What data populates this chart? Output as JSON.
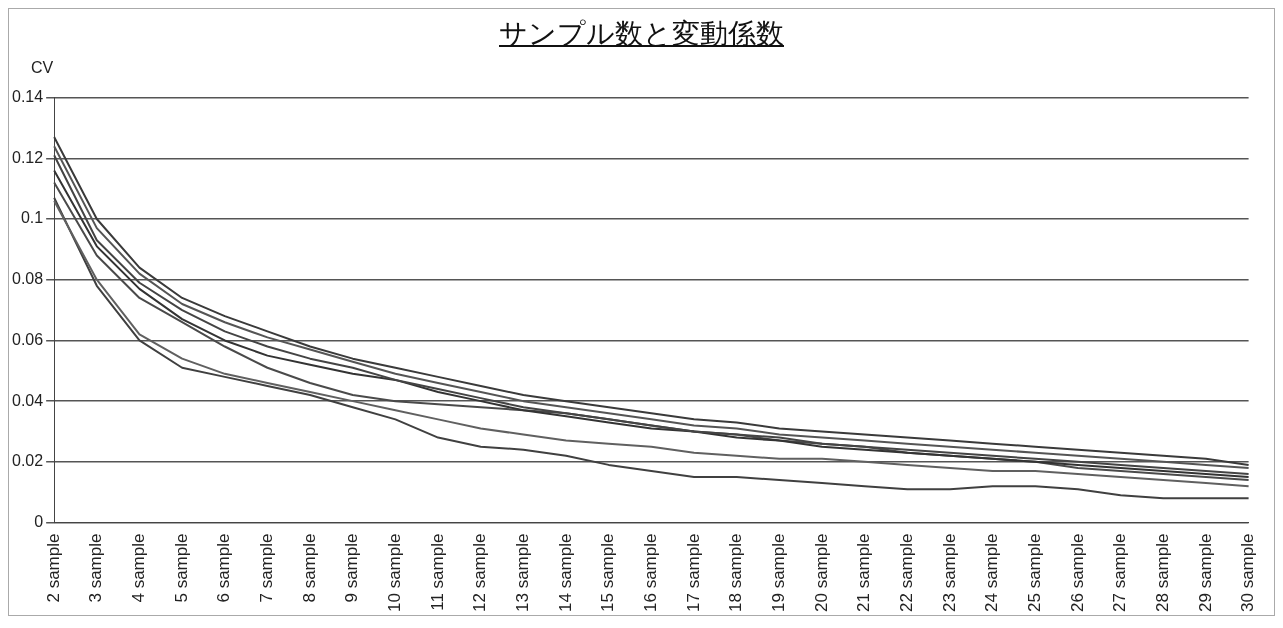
{
  "chart_data": {
    "type": "line",
    "title": "サンプル数と変動係数",
    "ylabel": "CV",
    "categories": [
      "2 sample",
      "3 sample",
      "4 sample",
      "5 sample",
      "6 sample",
      "7 sample",
      "8 sample",
      "9 sample",
      "10 sample",
      "11 sample",
      "12 sample",
      "13 sample",
      "14 sample",
      "15 sample",
      "16 sample",
      "17 sample",
      "18 sample",
      "19 sample",
      "20 sample",
      "21 sample",
      "22 sample",
      "23 sample",
      "24 sample",
      "25 sample",
      "26 sample",
      "27 sample",
      "28 sample",
      "29 sample",
      "30 sample"
    ],
    "series": [
      {
        "color": "#3a3a3a",
        "values": [
          0.127,
          0.1,
          0.084,
          0.074,
          0.068,
          0.063,
          0.058,
          0.054,
          0.051,
          0.048,
          0.045,
          0.042,
          0.04,
          0.038,
          0.036,
          0.034,
          0.033,
          0.031,
          0.03,
          0.029,
          0.028,
          0.027,
          0.026,
          0.025,
          0.024,
          0.023,
          0.022,
          0.021,
          0.019
        ]
      },
      {
        "color": "#555555",
        "values": [
          0.124,
          0.097,
          0.082,
          0.072,
          0.066,
          0.061,
          0.057,
          0.053,
          0.049,
          0.046,
          0.043,
          0.04,
          0.038,
          0.036,
          0.034,
          0.032,
          0.031,
          0.029,
          0.028,
          0.027,
          0.026,
          0.025,
          0.024,
          0.023,
          0.022,
          0.021,
          0.02,
          0.019,
          0.018
        ]
      },
      {
        "color": "#444444",
        "values": [
          0.121,
          0.093,
          0.079,
          0.07,
          0.063,
          0.058,
          0.054,
          0.051,
          0.047,
          0.044,
          0.041,
          0.038,
          0.036,
          0.034,
          0.032,
          0.03,
          0.029,
          0.028,
          0.026,
          0.025,
          0.024,
          0.023,
          0.022,
          0.021,
          0.02,
          0.019,
          0.018,
          0.017,
          0.016
        ]
      },
      {
        "color": "#333333",
        "values": [
          0.116,
          0.091,
          0.077,
          0.067,
          0.06,
          0.055,
          0.052,
          0.049,
          0.047,
          0.043,
          0.04,
          0.037,
          0.035,
          0.033,
          0.031,
          0.03,
          0.028,
          0.027,
          0.025,
          0.024,
          0.023,
          0.022,
          0.021,
          0.02,
          0.019,
          0.018,
          0.017,
          0.016,
          0.015
        ]
      },
      {
        "color": "#4a4a4a",
        "values": [
          0.112,
          0.088,
          0.074,
          0.066,
          0.058,
          0.051,
          0.046,
          0.042,
          0.04,
          0.039,
          0.038,
          0.037,
          0.036,
          0.034,
          0.032,
          0.03,
          0.029,
          0.027,
          0.026,
          0.025,
          0.023,
          0.022,
          0.021,
          0.02,
          0.018,
          0.017,
          0.016,
          0.015,
          0.014
        ]
      },
      {
        "color": "#606060",
        "values": [
          0.106,
          0.08,
          0.062,
          0.054,
          0.049,
          0.046,
          0.043,
          0.04,
          0.037,
          0.034,
          0.031,
          0.029,
          0.027,
          0.026,
          0.025,
          0.023,
          0.022,
          0.021,
          0.021,
          0.02,
          0.019,
          0.018,
          0.017,
          0.017,
          0.016,
          0.015,
          0.014,
          0.013,
          0.012
        ]
      },
      {
        "color": "#404040",
        "values": [
          0.107,
          0.078,
          0.06,
          0.051,
          0.048,
          0.045,
          0.042,
          0.038,
          0.034,
          0.028,
          0.025,
          0.024,
          0.022,
          0.019,
          0.017,
          0.015,
          0.015,
          0.014,
          0.013,
          0.012,
          0.011,
          0.011,
          0.012,
          0.012,
          0.011,
          0.009,
          0.008,
          0.008,
          0.008
        ]
      }
    ],
    "ylim": [
      0,
      0.14
    ],
    "yticks": [
      0,
      0.02,
      0.04,
      0.06,
      0.08,
      0.1,
      0.12,
      0.14
    ],
    "grid": "y",
    "legend": false,
    "marker": "none",
    "line_style": "solid"
  }
}
